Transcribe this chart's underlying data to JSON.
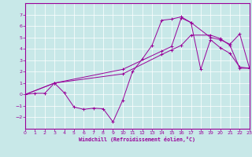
{
  "xlabel": "Windchill (Refroidissement éolien,°C)",
  "bg_color": "#c8e8e8",
  "line_color": "#990099",
  "xlim": [
    0,
    23
  ],
  "ylim": [
    -3,
    8
  ],
  "xticks": [
    0,
    1,
    2,
    3,
    4,
    5,
    6,
    7,
    8,
    9,
    10,
    11,
    12,
    13,
    14,
    15,
    16,
    17,
    18,
    19,
    20,
    21,
    22,
    23
  ],
  "yticks": [
    -2,
    -1,
    0,
    1,
    2,
    3,
    4,
    5,
    6,
    7
  ],
  "line1_x": [
    0,
    1,
    2,
    3,
    4,
    5,
    6,
    7,
    8,
    9,
    10,
    11,
    12,
    13,
    14,
    15,
    16,
    17,
    18,
    19,
    20,
    21,
    22,
    23
  ],
  "line1_y": [
    0.0,
    0.1,
    0.1,
    1.0,
    0.15,
    -1.1,
    -1.3,
    -1.2,
    -1.25,
    -2.4,
    -0.5,
    2.0,
    3.1,
    4.3,
    6.5,
    6.6,
    6.8,
    6.3,
    2.2,
    4.8,
    4.1,
    3.6,
    2.4,
    2.3
  ],
  "line2_x": [
    0,
    3,
    10,
    14,
    15,
    16,
    17,
    19,
    20,
    21,
    22,
    23
  ],
  "line2_y": [
    0.0,
    1.0,
    1.8,
    3.5,
    3.9,
    4.3,
    5.2,
    5.2,
    4.9,
    4.3,
    2.3,
    2.3
  ],
  "line3_x": [
    0,
    3,
    10,
    14,
    15,
    16,
    17,
    19,
    20,
    21,
    22,
    23
  ],
  "line3_y": [
    0.0,
    1.0,
    2.2,
    3.8,
    4.2,
    6.7,
    6.3,
    5.0,
    4.8,
    4.4,
    5.3,
    2.3
  ]
}
